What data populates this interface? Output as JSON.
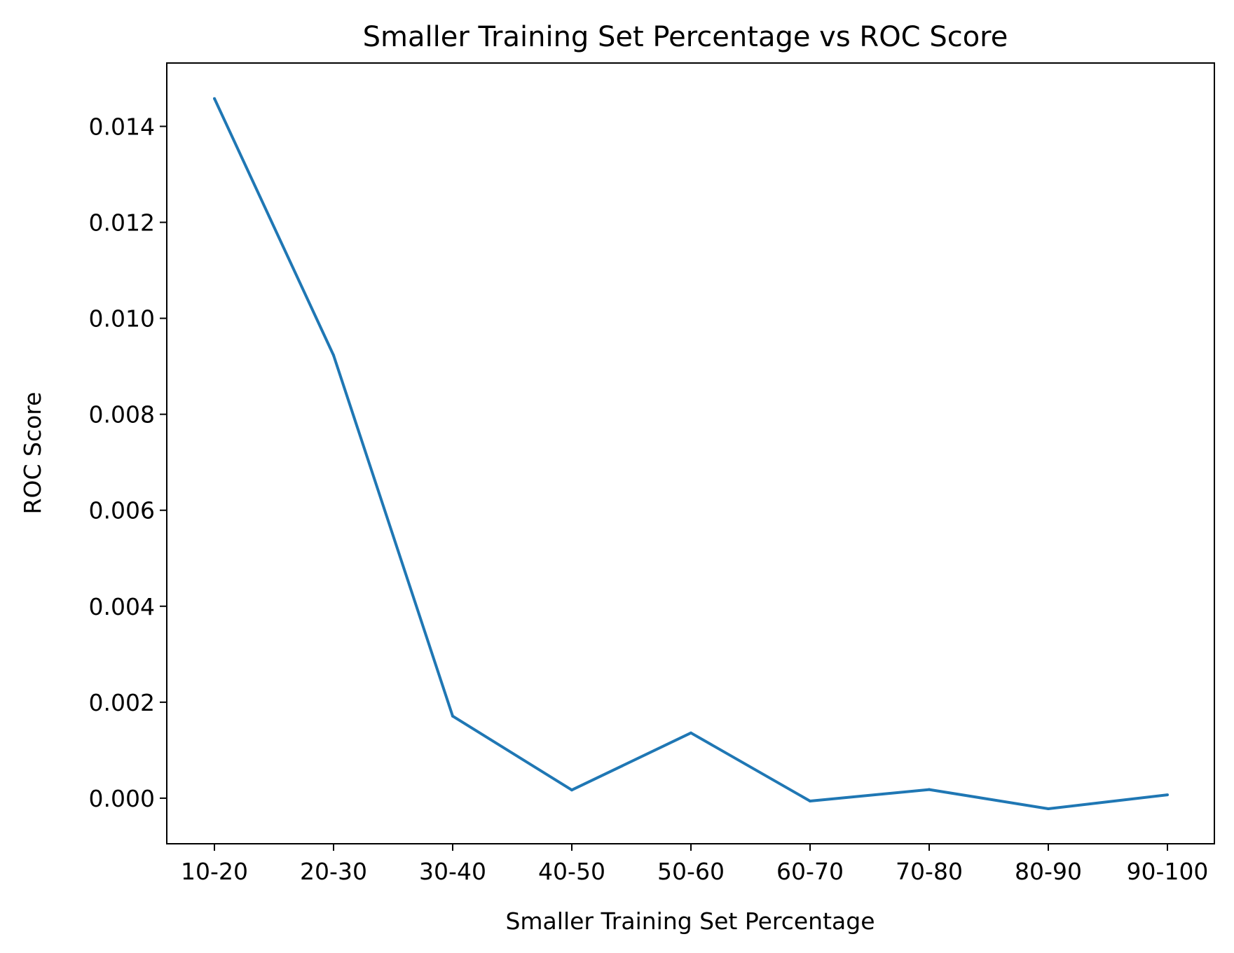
{
  "chart_data": {
    "type": "line",
    "title": "Smaller Training Set Percentage vs ROC Score",
    "xlabel": "Smaller Training Set Percentage",
    "ylabel": "ROC Score",
    "categories": [
      "10-20",
      "20-30",
      "30-40",
      "40-50",
      "50-60",
      "60-70",
      "70-80",
      "80-90",
      "90-100"
    ],
    "series": [
      {
        "values": [
          0.01458,
          0.00923,
          0.00171,
          0.00017,
          0.00136,
          -6e-05,
          0.00018,
          -0.00022,
          7e-05
        ],
        "color": "#1f77b4"
      }
    ],
    "ylim": [
      -0.00095,
      0.01532
    ],
    "yticks": [
      0.0,
      0.002,
      0.004,
      0.006,
      0.008,
      0.01,
      0.012,
      0.014
    ],
    "ytick_labels": [
      "0.000",
      "0.002",
      "0.004",
      "0.006",
      "0.008",
      "0.010",
      "0.012",
      "0.014"
    ],
    "grid": false,
    "legend": false
  }
}
